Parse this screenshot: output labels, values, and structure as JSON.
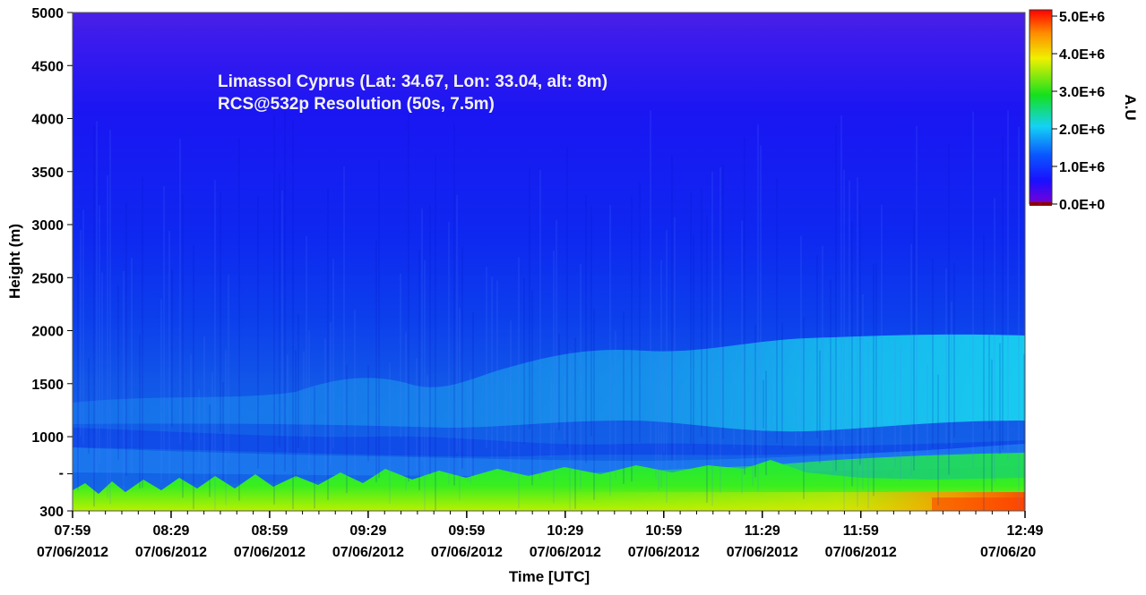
{
  "chart_data": {
    "type": "heatmap",
    "annotations": [
      "Limassol Cyprus (Lat: 34.67, Lon: 33.04, alt: 8m)",
      "RCS@532p Resolution (50s, 7.5m)"
    ],
    "xlabel": "Time [UTC]",
    "ylabel": "Height (m)",
    "x_ticks": [
      {
        "time": "07:59",
        "date": "07/06/2012"
      },
      {
        "time": "08:29",
        "date": "07/06/2012"
      },
      {
        "time": "08:59",
        "date": "07/06/2012"
      },
      {
        "time": "09:29",
        "date": "07/06/2012"
      },
      {
        "time": "09:59",
        "date": "07/06/2012"
      },
      {
        "time": "10:29",
        "date": "07/06/2012"
      },
      {
        "time": "10:59",
        "date": "07/06/2012"
      },
      {
        "time": "11:29",
        "date": "07/06/2012"
      },
      {
        "time": "11:59",
        "date": "07/06/2012"
      },
      {
        "time": "12:49",
        "date": "07/06/20"
      }
    ],
    "y_ticks": [
      "300",
      "1000",
      "1500",
      "2000",
      "2500",
      "3000",
      "3500",
      "4000",
      "4500",
      "5000"
    ],
    "ylim": [
      300,
      5000
    ],
    "xlim": [
      "07:59",
      "12:49"
    ],
    "colorbar": {
      "label": "A.U",
      "ticks": [
        "0.0E+0",
        "1.0E+6",
        "2.0E+6",
        "3.0E+6",
        "4.0E+6",
        "5.0E+6"
      ],
      "range": [
        0,
        5000000
      ],
      "colors": [
        "#7a00d6",
        "#0014ff",
        "#0a78ff",
        "#14e6f0",
        "#14e01e",
        "#f0f000",
        "#ff8c00",
        "#ff0000"
      ]
    },
    "features": [
      {
        "type": "residual-layer-top",
        "height_start_m": 1400,
        "height_end_m": 1900
      },
      {
        "type": "aerosol-layer",
        "height_m": 1000
      },
      {
        "type": "near-surface-high-signal",
        "height_max_m": 700
      }
    ]
  }
}
